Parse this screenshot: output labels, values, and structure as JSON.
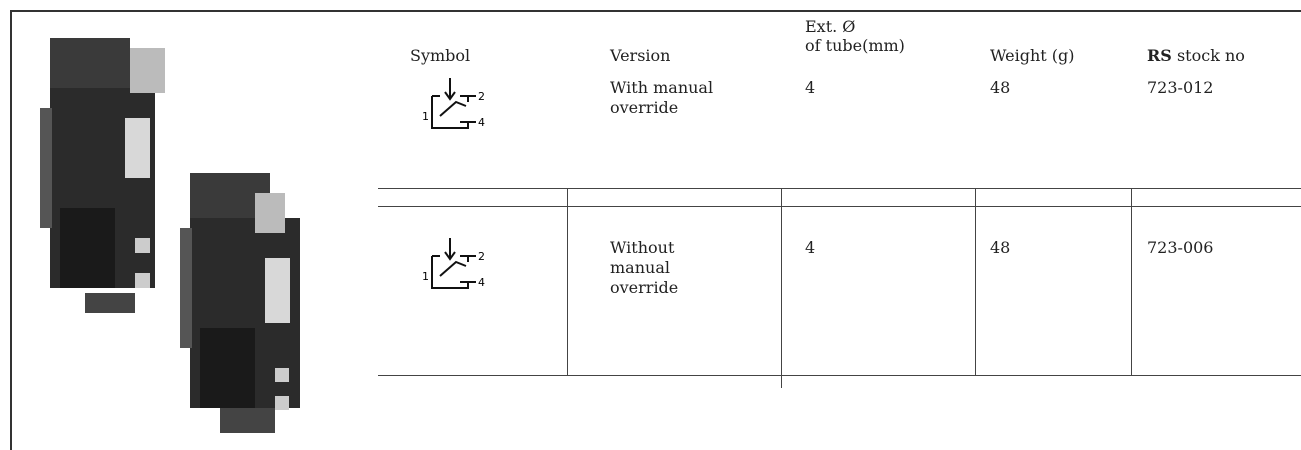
{
  "table": {
    "header": {
      "symbol": "Symbol",
      "version": "Version",
      "tube": [
        "Ext. Ø",
        "of tube(mm)"
      ],
      "weight": "Weight (g)",
      "stock": {
        "bold": "RS",
        "rest": "stock no"
      }
    },
    "rows": [
      {
        "symbol": {
          "in": "1",
          "out_a": "2",
          "out_b": "4"
        },
        "version": "With manual override",
        "tube": "4",
        "weight": "48",
        "stock": "723-012"
      },
      {
        "symbol": {
          "in": "1",
          "out_a": "2",
          "out_b": "4"
        },
        "version": "Without manual override",
        "tube": "4",
        "weight": "48",
        "stock": "723-006"
      }
    ]
  }
}
